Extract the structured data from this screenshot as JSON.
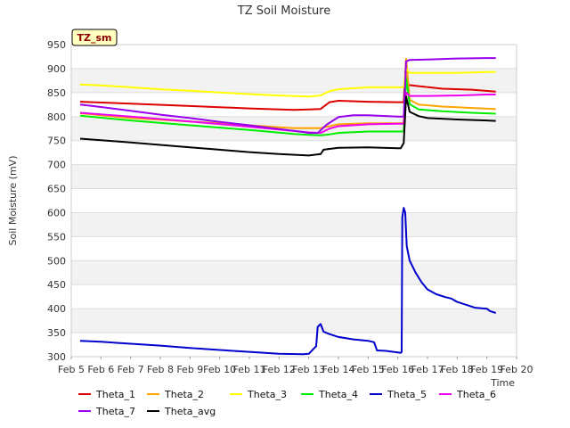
{
  "chart_data": {
    "type": "line",
    "title": "TZ Soil Moisture",
    "xlabel": "Time",
    "ylabel": "Soil Moisture (mV)",
    "badge": "TZ_sm",
    "ylim": [
      300,
      950
    ],
    "yticks": [
      300,
      350,
      400,
      450,
      500,
      550,
      600,
      650,
      700,
      750,
      800,
      850,
      900,
      950
    ],
    "xlim": [
      5,
      20
    ],
    "xticks": [
      {
        "v": 5,
        "label": "Feb 5"
      },
      {
        "v": 6,
        "label": "Feb 6"
      },
      {
        "v": 7,
        "label": "Feb 7"
      },
      {
        "v": 8,
        "label": "Feb 8"
      },
      {
        "v": 9,
        "label": "Feb 9"
      },
      {
        "v": 10,
        "label": "Feb 10"
      },
      {
        "v": 11,
        "label": "Feb 11"
      },
      {
        "v": 12,
        "label": "Feb 12"
      },
      {
        "v": 13,
        "label": "Feb 13"
      },
      {
        "v": 14,
        "label": "Feb 14"
      },
      {
        "v": 15,
        "label": "Feb 15"
      },
      {
        "v": 16,
        "label": "Feb 16"
      },
      {
        "v": 17,
        "label": "Feb 17"
      },
      {
        "v": 18,
        "label": "Feb 18"
      },
      {
        "v": 19,
        "label": "Feb 19"
      },
      {
        "v": 20,
        "label": "Feb 20"
      }
    ],
    "series": [
      {
        "name": "Theta_1",
        "color": "#dd0000",
        "points": [
          [
            5.3,
            831
          ],
          [
            7,
            827
          ],
          [
            9,
            822
          ],
          [
            11,
            817
          ],
          [
            12.5,
            814
          ],
          [
            13,
            815
          ],
          [
            13.4,
            816
          ],
          [
            13.7,
            830
          ],
          [
            14,
            833
          ],
          [
            15,
            831
          ],
          [
            16,
            830
          ],
          [
            16.2,
            830
          ],
          [
            16.28,
            920
          ],
          [
            16.35,
            866
          ],
          [
            16.6,
            864
          ],
          [
            17.5,
            858
          ],
          [
            18.5,
            856
          ],
          [
            19.3,
            852
          ]
        ]
      },
      {
        "name": "Theta_2",
        "color": "#ffa500",
        "points": [
          [
            5.3,
            807
          ],
          [
            7,
            797
          ],
          [
            9,
            790
          ],
          [
            11,
            782
          ],
          [
            12.5,
            776
          ],
          [
            13,
            776
          ],
          [
            13.4,
            776
          ],
          [
            13.7,
            780
          ],
          [
            14,
            784
          ],
          [
            15,
            786
          ],
          [
            16,
            786
          ],
          [
            16.2,
            786
          ],
          [
            16.28,
            920
          ],
          [
            16.4,
            835
          ],
          [
            16.7,
            825
          ],
          [
            17.5,
            821
          ],
          [
            18.5,
            818
          ],
          [
            19.3,
            816
          ]
        ]
      },
      {
        "name": "Theta_3",
        "color": "#ffff00",
        "points": [
          [
            5.3,
            867
          ],
          [
            6,
            865
          ],
          [
            7,
            861
          ],
          [
            8,
            857
          ],
          [
            9,
            854
          ],
          [
            10,
            850
          ],
          [
            11,
            847
          ],
          [
            12,
            844
          ],
          [
            13,
            842
          ],
          [
            13.4,
            844
          ],
          [
            13.7,
            853
          ],
          [
            14,
            857
          ],
          [
            15,
            861
          ],
          [
            16,
            861
          ],
          [
            16.2,
            861
          ],
          [
            16.28,
            900
          ],
          [
            16.4,
            891
          ],
          [
            17,
            891
          ],
          [
            18,
            891
          ],
          [
            19,
            893
          ],
          [
            19.3,
            893
          ]
        ]
      },
      {
        "name": "Theta_4",
        "color": "#00ee00",
        "points": [
          [
            5.3,
            802
          ],
          [
            7,
            792
          ],
          [
            9,
            782
          ],
          [
            11,
            772
          ],
          [
            12.5,
            764
          ],
          [
            13,
            762
          ],
          [
            13.4,
            761
          ],
          [
            13.7,
            763
          ],
          [
            14,
            766
          ],
          [
            15,
            769
          ],
          [
            16,
            769
          ],
          [
            16.2,
            769
          ],
          [
            16.28,
            880
          ],
          [
            16.4,
            826
          ],
          [
            16.7,
            815
          ],
          [
            17.5,
            811
          ],
          [
            18.5,
            808
          ],
          [
            19.3,
            806
          ]
        ]
      },
      {
        "name": "Theta_5",
        "color": "#0000cc",
        "points": [
          [
            5.3,
            333
          ],
          [
            6,
            331
          ],
          [
            7,
            327
          ],
          [
            8,
            323
          ],
          [
            9,
            318
          ],
          [
            10,
            314
          ],
          [
            11,
            310
          ],
          [
            12,
            306
          ],
          [
            12.8,
            305
          ],
          [
            13,
            306
          ],
          [
            13.25,
            322
          ],
          [
            13.3,
            362
          ],
          [
            13.4,
            368
          ],
          [
            13.5,
            352
          ],
          [
            13.7,
            347
          ],
          [
            14,
            341
          ],
          [
            14.5,
            336
          ],
          [
            15,
            333
          ],
          [
            15.2,
            330
          ],
          [
            15.3,
            313
          ],
          [
            15.6,
            312
          ],
          [
            16,
            309
          ],
          [
            16.1,
            308
          ],
          [
            16.13,
            310
          ],
          [
            16.15,
            590
          ],
          [
            16.2,
            610
          ],
          [
            16.25,
            600
          ],
          [
            16.3,
            530
          ],
          [
            16.4,
            500
          ],
          [
            16.6,
            475
          ],
          [
            16.8,
            455
          ],
          [
            17,
            440
          ],
          [
            17.3,
            430
          ],
          [
            17.6,
            424
          ],
          [
            17.8,
            421
          ],
          [
            18,
            414
          ],
          [
            18.3,
            408
          ],
          [
            18.6,
            402
          ],
          [
            19,
            400
          ],
          [
            19.1,
            395
          ],
          [
            19.3,
            391
          ]
        ]
      },
      {
        "name": "Theta_6",
        "color": "#ee00ee",
        "points": [
          [
            5.3,
            808
          ],
          [
            7,
            800
          ],
          [
            9,
            790
          ],
          [
            11,
            779
          ],
          [
            12.5,
            770
          ],
          [
            13,
            767
          ],
          [
            13.4,
            766
          ],
          [
            13.7,
            775
          ],
          [
            14,
            780
          ],
          [
            15,
            784
          ],
          [
            16,
            785
          ],
          [
            16.2,
            785
          ],
          [
            16.28,
            850
          ],
          [
            16.4,
            843
          ],
          [
            17,
            843
          ],
          [
            18,
            844
          ],
          [
            19,
            846
          ],
          [
            19.3,
            846
          ]
        ]
      },
      {
        "name": "Theta_7",
        "color": "#9900ee",
        "points": [
          [
            5.3,
            825
          ],
          [
            6,
            820
          ],
          [
            7,
            812
          ],
          [
            8,
            804
          ],
          [
            9,
            797
          ],
          [
            10,
            789
          ],
          [
            11,
            782
          ],
          [
            12,
            774
          ],
          [
            12.8,
            768
          ],
          [
            13,
            766
          ],
          [
            13.3,
            766
          ],
          [
            13.6,
            783
          ],
          [
            14,
            799
          ],
          [
            14.5,
            803
          ],
          [
            15,
            803
          ],
          [
            16,
            800
          ],
          [
            16.2,
            800
          ],
          [
            16.28,
            915
          ],
          [
            16.4,
            918
          ],
          [
            17,
            919
          ],
          [
            18,
            921
          ],
          [
            19,
            922
          ],
          [
            19.3,
            922
          ]
        ]
      },
      {
        "name": "Theta_avg",
        "color": "#000000",
        "points": [
          [
            5.3,
            754
          ],
          [
            6,
            751
          ],
          [
            7,
            746
          ],
          [
            8,
            741
          ],
          [
            9,
            736
          ],
          [
            10,
            731
          ],
          [
            11,
            726
          ],
          [
            12,
            722
          ],
          [
            13,
            719
          ],
          [
            13.4,
            722
          ],
          [
            13.5,
            731
          ],
          [
            14,
            735
          ],
          [
            15,
            736
          ],
          [
            16,
            734
          ],
          [
            16.1,
            734
          ],
          [
            16.2,
            745
          ],
          [
            16.28,
            842
          ],
          [
            16.4,
            810
          ],
          [
            16.7,
            801
          ],
          [
            17,
            797
          ],
          [
            18,
            794
          ],
          [
            19,
            792
          ],
          [
            19.3,
            791
          ]
        ]
      }
    ]
  }
}
